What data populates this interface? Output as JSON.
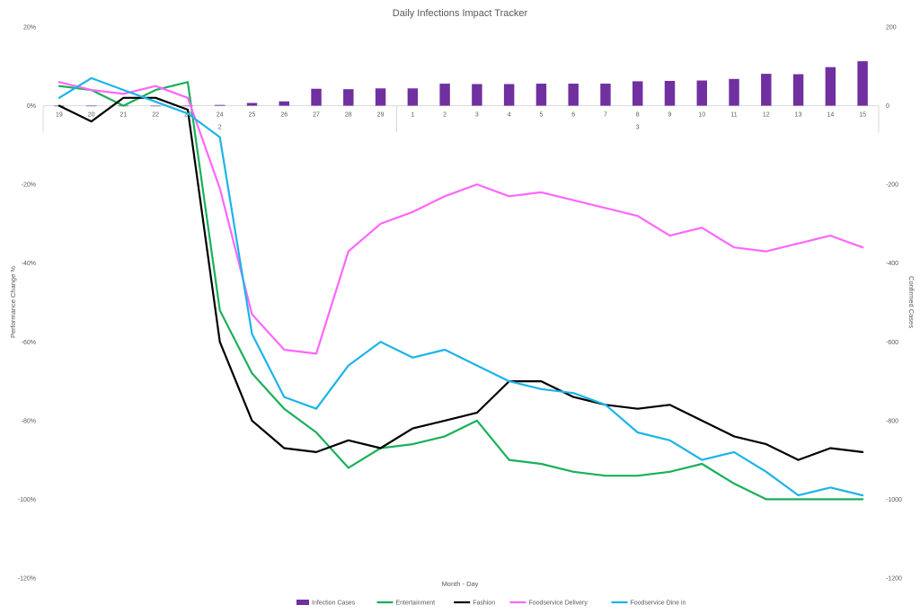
{
  "chart_data": {
    "type": "line",
    "title": "Daily Infections Impact Tracker",
    "xlabel": "Month - Day",
    "ylabel": "Performance Change %",
    "y2label": "Confirmed Cases",
    "ylim": [
      -120,
      20
    ],
    "y2lim": [
      -1200,
      200
    ],
    "yticks": [
      "20%",
      "0%",
      "-20%",
      "-40%",
      "-60%",
      "-80%",
      "-100%",
      "-120%"
    ],
    "y2ticks": [
      "200",
      "0",
      "-200",
      "-400",
      "-600",
      "-800",
      "-1000",
      "-1200"
    ],
    "months": [
      {
        "label": "2",
        "days": [
          "19",
          "20",
          "21",
          "22",
          "23",
          "24",
          "25",
          "26",
          "27",
          "28",
          "29"
        ]
      },
      {
        "label": "3",
        "days": [
          "1",
          "2",
          "3",
          "4",
          "5",
          "6",
          "7",
          "8",
          "9",
          "10",
          "11",
          "12",
          "13",
          "14",
          "15"
        ]
      }
    ],
    "categories": [
      "19",
      "20",
      "21",
      "22",
      "23",
      "24",
      "25",
      "26",
      "27",
      "28",
      "29",
      "1",
      "2",
      "3",
      "4",
      "5",
      "6",
      "7",
      "8",
      "9",
      "10",
      "11",
      "12",
      "13",
      "14",
      "15"
    ],
    "bars": {
      "name": "Infection Cases",
      "color": "#7030a0",
      "axis": "y2",
      "values": [
        0,
        0,
        0,
        0,
        0,
        2,
        7,
        11,
        43,
        42,
        44,
        44,
        56,
        55,
        55,
        56,
        56,
        56,
        62,
        63,
        64,
        68,
        81,
        80,
        98,
        113
      ]
    },
    "series": [
      {
        "name": "Entertainment",
        "color": "#1ab05a",
        "values": [
          5,
          4,
          0,
          4,
          6,
          -52,
          -68,
          -77,
          -83,
          -92,
          -87,
          -86,
          -84,
          -80,
          -90,
          -91,
          -93,
          -94,
          -94,
          -93,
          -91,
          -96,
          -100,
          -100,
          -100,
          -100
        ]
      },
      {
        "name": "Fashion",
        "color": "#000000",
        "values": [
          0,
          -4,
          2,
          2,
          -1,
          -60,
          -80,
          -87,
          -88,
          -85,
          -87,
          -82,
          -80,
          -78,
          -70,
          -70,
          -74,
          -76,
          -77,
          -76,
          -80,
          -84,
          -86,
          -90,
          -87,
          -88
        ]
      },
      {
        "name": "Foodservice Delivery",
        "color": "#ff66ff",
        "values": [
          6,
          4,
          3,
          5,
          2,
          -21,
          -53,
          -62,
          -63,
          -37,
          -30,
          -27,
          -23,
          -20,
          -23,
          -22,
          -24,
          -26,
          -28,
          -33,
          -31,
          -36,
          -37,
          -35,
          -33,
          -36
        ]
      },
      {
        "name": "Foodservice Dine in",
        "color": "#1cb4e8",
        "values": [
          2,
          7,
          4,
          1,
          -2,
          -8,
          -58,
          -74,
          -77,
          -66,
          -60,
          -64,
          -62,
          -66,
          -70,
          -72,
          -73,
          -76,
          -83,
          -85,
          -90,
          -88,
          -93,
          -99,
          -97,
          -99
        ]
      }
    ]
  }
}
